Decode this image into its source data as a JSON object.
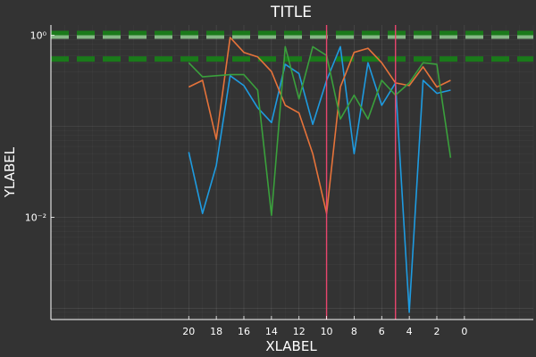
{
  "chart_data": {
    "type": "line",
    "title": "TITLE",
    "xlabel": "XLABEL",
    "ylabel": "YLABEL",
    "x_flipped": true,
    "xlim": [
      -5,
      30
    ],
    "x_ticks": [
      20,
      18,
      16,
      14,
      12,
      10,
      8,
      6,
      4,
      2,
      0
    ],
    "y_scale": "log10",
    "ylim": [
      0.00075,
      1.3
    ],
    "y_ticks": [
      {
        "value": 1,
        "label": "10⁰"
      },
      {
        "value": 0.01,
        "label": "10⁻²"
      }
    ],
    "grid": true,
    "legend": "none",
    "background": "#333333",
    "colors": {
      "series1": "#1e9be0",
      "series2": "#e6733a",
      "series3": "#3aa03c",
      "vlines": "#e8456e",
      "hlines": "#1a7a1a",
      "hline_band": "#86b886"
    },
    "x": [
      20,
      19,
      18,
      17,
      16,
      15,
      14,
      13,
      12,
      11,
      10,
      9,
      8,
      7,
      6,
      5,
      4,
      3,
      2,
      1
    ],
    "series": [
      {
        "values": [
          0.052,
          0.011,
          0.037,
          0.36,
          0.28,
          0.16,
          0.11,
          0.48,
          0.38,
          0.105,
          0.32,
          0.75,
          0.05,
          0.5,
          0.17,
          0.3,
          0.0009,
          0.32,
          0.23,
          0.25
        ]
      },
      {
        "values": [
          0.27,
          0.32,
          0.072,
          0.95,
          0.65,
          0.58,
          0.4,
          0.17,
          0.14,
          0.05,
          0.011,
          0.27,
          0.65,
          0.72,
          0.5,
          0.3,
          0.28,
          0.45,
          0.27,
          0.32
        ]
      },
      {
        "values": [
          0.5,
          0.35,
          0.36,
          0.37,
          0.37,
          0.25,
          0.0105,
          0.75,
          0.2,
          0.75,
          0.6,
          0.12,
          0.22,
          0.12,
          0.32,
          0.22,
          0.3,
          0.5,
          0.48,
          0.045
        ]
      }
    ],
    "vlines": [
      10,
      5
    ],
    "hlines": [
      0.55,
      1.05
    ]
  }
}
